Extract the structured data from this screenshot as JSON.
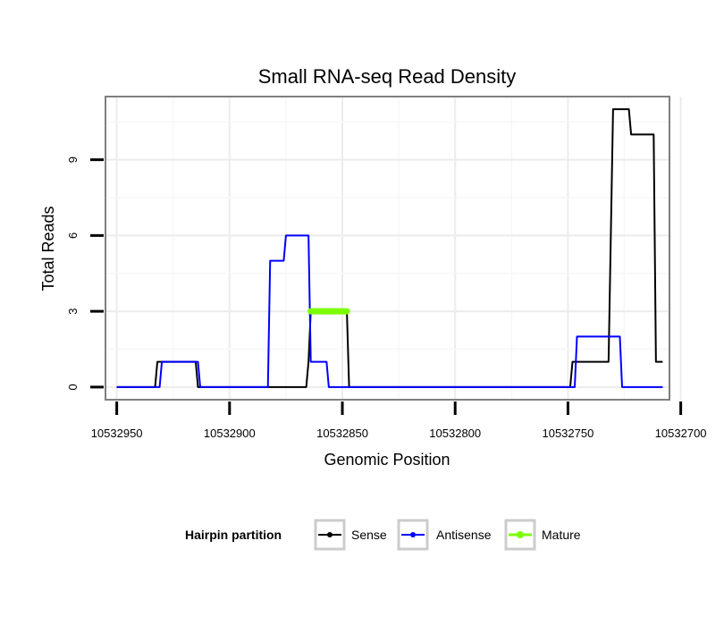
{
  "chart_data": {
    "type": "line",
    "title": "Small RNA-seq Read Density",
    "xlabel": "Genomic Position",
    "ylabel": "Total Reads",
    "xlim": [
      10532705,
      10532955
    ],
    "x_reversed": true,
    "ylim": [
      -0.5,
      11.5
    ],
    "x_ticks": [
      10532950,
      10532900,
      10532850,
      10532800,
      10532750,
      10532700
    ],
    "x_tick_labels": [
      "10532950",
      "10532900",
      "10532850",
      "10532800",
      "10532750",
      "10532700"
    ],
    "y_ticks": [
      0,
      3,
      6,
      9
    ],
    "y_tick_labels": [
      "0",
      "3",
      "6",
      "9"
    ],
    "grid": true,
    "legend": {
      "title": "Hairpin partition",
      "position": "bottom",
      "entries": [
        "Sense",
        "Antisense",
        "Mature"
      ]
    },
    "series": [
      {
        "name": "Sense",
        "color": "#000000",
        "points": [
          [
            10532950,
            0
          ],
          [
            10532933,
            0
          ],
          [
            10532932,
            1
          ],
          [
            10532915,
            1
          ],
          [
            10532914,
            0
          ],
          [
            10532866,
            0
          ],
          [
            10532865,
            1
          ],
          [
            10532864,
            3
          ],
          [
            10532848,
            3
          ],
          [
            10532847,
            0
          ],
          [
            10532749,
            0
          ],
          [
            10532748,
            1
          ],
          [
            10532732,
            1
          ],
          [
            10532731,
            6
          ],
          [
            10532730,
            11
          ],
          [
            10532723,
            11
          ],
          [
            10532722,
            10
          ],
          [
            10532712,
            10
          ],
          [
            10532711,
            1
          ],
          [
            10532708,
            1
          ]
        ]
      },
      {
        "name": "Antisense",
        "color": "#0000ff",
        "points": [
          [
            10532950,
            0
          ],
          [
            10532931,
            0
          ],
          [
            10532930,
            1
          ],
          [
            10532914,
            1
          ],
          [
            10532913,
            0
          ],
          [
            10532883,
            0
          ],
          [
            10532882,
            5
          ],
          [
            10532876,
            5
          ],
          [
            10532875,
            6
          ],
          [
            10532865,
            6
          ],
          [
            10532864,
            1
          ],
          [
            10532857,
            1
          ],
          [
            10532856,
            0
          ],
          [
            10532747,
            0
          ],
          [
            10532746,
            2
          ],
          [
            10532727,
            2
          ],
          [
            10532726,
            0
          ],
          [
            10532708,
            0
          ]
        ]
      },
      {
        "name": "Mature",
        "color": "#7cfc00",
        "points": [
          [
            10532864,
            3
          ],
          [
            10532848,
            3
          ]
        ]
      }
    ]
  }
}
